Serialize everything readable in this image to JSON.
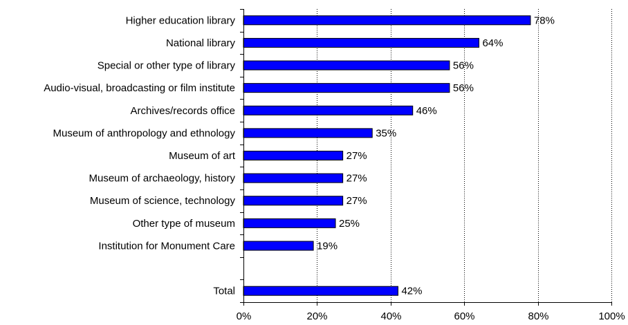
{
  "chart_data": {
    "type": "bar",
    "orientation": "horizontal",
    "title": "",
    "xlabel": "",
    "ylabel": "",
    "categories": [
      "Higher education library",
      "National library",
      "Special or other type of library",
      "Audio-visual, broadcasting or film institute",
      "Archives/records office",
      "Museum of anthropology and ethnology",
      "Museum of art",
      "Museum of archaeology, history",
      "Museum of science, technology",
      "Other type of museum",
      "Institution for Monument Care",
      "",
      "Total"
    ],
    "values": [
      78,
      64,
      56,
      56,
      46,
      35,
      27,
      27,
      27,
      25,
      19,
      null,
      42
    ],
    "value_labels": [
      "78%",
      "64%",
      "56%",
      "56%",
      "46%",
      "35%",
      "27%",
      "27%",
      "27%",
      "25%",
      "19%",
      "",
      "42%"
    ],
    "xlim": [
      0,
      100
    ],
    "xticks": [
      0,
      20,
      40,
      60,
      80,
      100
    ],
    "xtick_labels": [
      "0%",
      "20%",
      "40%",
      "60%",
      "80%",
      "100%"
    ],
    "grid": "vertical dotted",
    "bar_color": "#0000ff",
    "bar_edge_color": "#000000",
    "legend": "none"
  }
}
